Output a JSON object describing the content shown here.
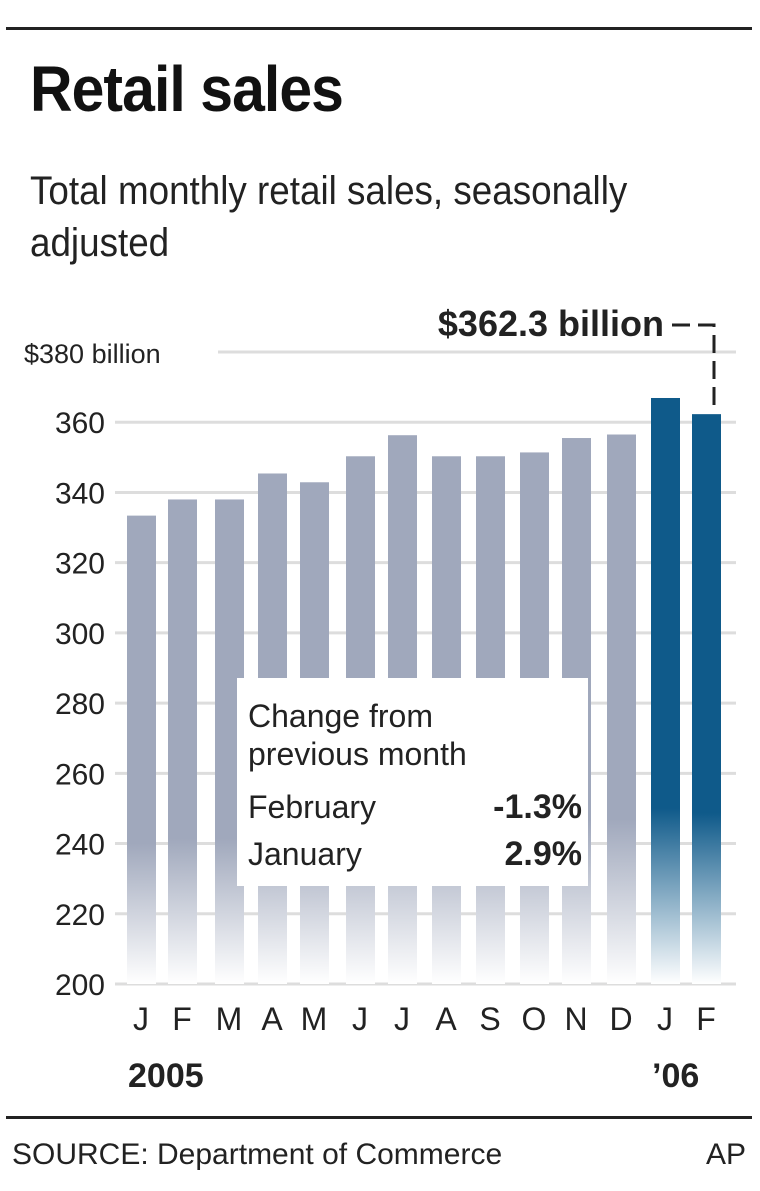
{
  "title": "Retail sales",
  "subtitle": "Total monthly retail sales, seasonally adjusted",
  "source": "SOURCE: Department of Commerce",
  "credit": "AP",
  "callout": "$362.3 billion",
  "inset": {
    "heading1": "Change from",
    "heading2": "previous month",
    "rows": [
      {
        "label": "February",
        "value": "-1.3%"
      },
      {
        "label": "January",
        "value": "2.9%"
      }
    ]
  },
  "colors": {
    "bar2005": "#a0a8bc",
    "bar2006": "#0f5a8a",
    "grid": "#dddddd"
  },
  "chart_data": {
    "type": "bar",
    "title": "Retail sales",
    "ylabel": "$ billion",
    "ylim": [
      200,
      380
    ],
    "yticks": [
      {
        "v": 380,
        "label": "$380 billion"
      },
      {
        "v": 360,
        "label": "360"
      },
      {
        "v": 340,
        "label": "340"
      },
      {
        "v": 320,
        "label": "320"
      },
      {
        "v": 300,
        "label": "300"
      },
      {
        "v": 280,
        "label": "280"
      },
      {
        "v": 260,
        "label": "260"
      },
      {
        "v": 240,
        "label": "240"
      },
      {
        "v": 220,
        "label": "220"
      },
      {
        "v": 200,
        "label": "200"
      }
    ],
    "categories": [
      "J",
      "F",
      "M",
      "A",
      "M",
      "J",
      "J",
      "A",
      "S",
      "O",
      "N",
      "D",
      "J",
      "F"
    ],
    "year_labels": [
      {
        "label": "2005",
        "index": 0
      },
      {
        "label": "’06",
        "index": 12
      }
    ],
    "values": [
      333.4,
      338.0,
      338.0,
      345.4,
      342.9,
      350.3,
      356.3,
      350.3,
      350.3,
      351.4,
      355.5,
      356.5,
      366.9,
      362.3
    ],
    "year": [
      2005,
      2005,
      2005,
      2005,
      2005,
      2005,
      2005,
      2005,
      2005,
      2005,
      2005,
      2005,
      2006,
      2006
    ],
    "grid": true
  }
}
